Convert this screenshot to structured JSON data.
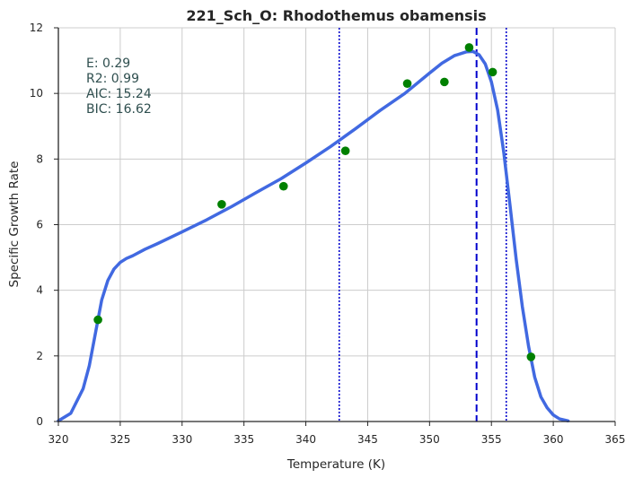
{
  "chart_data": {
    "type": "line",
    "title": "221_Sch_O: Rhodothemus obamensis",
    "xlabel": "Temperature (K)",
    "ylabel": "Specific Growth Rate",
    "xlim": [
      320,
      365
    ],
    "ylim": [
      0,
      12
    ],
    "x_ticks": [
      320,
      325,
      330,
      335,
      340,
      345,
      350,
      355,
      360,
      365
    ],
    "y_ticks": [
      0,
      2,
      4,
      6,
      8,
      10,
      12
    ],
    "grid": true,
    "stats_lines": [
      "E:  0.29",
      "R2:  0.99",
      "AIC: 15.24",
      "BIC: 16.62"
    ],
    "points": [
      {
        "x": 323.2,
        "y": 3.1
      },
      {
        "x": 333.2,
        "y": 6.62
      },
      {
        "x": 338.2,
        "y": 7.17
      },
      {
        "x": 343.2,
        "y": 8.25
      },
      {
        "x": 348.2,
        "y": 10.3
      },
      {
        "x": 351.2,
        "y": 10.35
      },
      {
        "x": 353.2,
        "y": 11.4
      },
      {
        "x": 355.1,
        "y": 10.65
      },
      {
        "x": 358.2,
        "y": 1.97
      }
    ],
    "fit_curve": {
      "x": [
        320.0,
        321.0,
        322.0,
        322.5,
        323.0,
        323.5,
        324.0,
        324.5,
        325.0,
        325.5,
        326.0,
        327.0,
        328.0,
        330.0,
        332.0,
        334.0,
        336.0,
        338.0,
        340.0,
        342.0,
        344.0,
        346.0,
        348.0,
        350.0,
        351.0,
        352.0,
        353.0,
        353.5,
        354.0,
        354.5,
        355.0,
        355.5,
        356.0,
        356.5,
        357.0,
        357.5,
        358.0,
        358.5,
        359.0,
        359.5,
        360.0,
        360.5,
        361.2
      ],
      "y": [
        0.02,
        0.25,
        1.0,
        1.7,
        2.7,
        3.7,
        4.3,
        4.65,
        4.85,
        4.97,
        5.05,
        5.25,
        5.42,
        5.78,
        6.15,
        6.55,
        6.98,
        7.4,
        7.88,
        8.38,
        8.92,
        9.48,
        10.0,
        10.62,
        10.92,
        11.15,
        11.27,
        11.28,
        11.18,
        10.9,
        10.35,
        9.5,
        8.2,
        6.6,
        4.95,
        3.5,
        2.3,
        1.35,
        0.75,
        0.42,
        0.2,
        0.08,
        0.02
      ]
    },
    "vlines": [
      {
        "x": 342.7,
        "style": "dotted"
      },
      {
        "x": 353.8,
        "style": "dashed"
      },
      {
        "x": 356.2,
        "style": "dotted"
      }
    ],
    "colors": {
      "curve": "#4169e1",
      "points": "#008000",
      "vlines": "#0000cd",
      "grid": "#cccccc",
      "axis": "#262626",
      "stats": "#2f4f4f"
    }
  }
}
